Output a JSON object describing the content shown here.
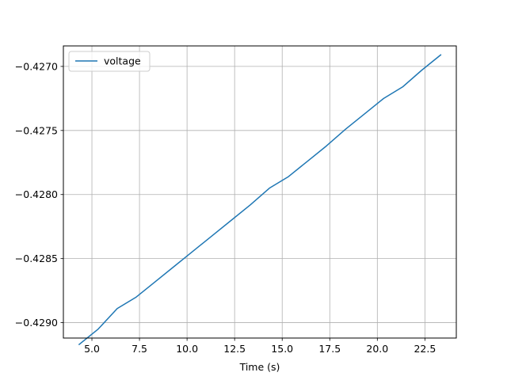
{
  "chart_data": {
    "type": "line",
    "title": "",
    "xlabel": "Time (s)",
    "ylabel": "",
    "xlim": [
      3.5,
      24.15
    ],
    "ylim": [
      -0.42912,
      -0.42684
    ],
    "x_ticks": [
      5.0,
      7.5,
      10.0,
      12.5,
      15.0,
      17.5,
      20.0,
      22.5
    ],
    "x_tick_labels": [
      "5.0",
      "7.5",
      "10.0",
      "12.5",
      "15.0",
      "17.5",
      "20.0",
      "22.5"
    ],
    "y_ticks": [
      -0.429,
      -0.4285,
      -0.428,
      -0.4275,
      -0.427
    ],
    "y_tick_labels": [
      "−0.4290",
      "−0.4285",
      "−0.4280",
      "−0.4275",
      "−0.4270"
    ],
    "grid": true,
    "legend_position": "top-left",
    "series": [
      {
        "name": "voltage",
        "color": "#1f77b4",
        "x": [
          4.33,
          5.33,
          6.33,
          7.33,
          8.33,
          9.33,
          10.33,
          11.33,
          12.33,
          13.33,
          14.33,
          15.33,
          16.33,
          17.33,
          18.33,
          19.33,
          20.33,
          21.33,
          22.33,
          23.33
        ],
        "y": [
          -0.42917,
          -0.42905,
          -0.42889,
          -0.4288,
          -0.42868,
          -0.42856,
          -0.42844,
          -0.42832,
          -0.4282,
          -0.42808,
          -0.42795,
          -0.42786,
          -0.42774,
          -0.42762,
          -0.42749,
          -0.42737,
          -0.42725,
          -0.42716,
          -0.42703,
          -0.42691
        ]
      }
    ]
  }
}
